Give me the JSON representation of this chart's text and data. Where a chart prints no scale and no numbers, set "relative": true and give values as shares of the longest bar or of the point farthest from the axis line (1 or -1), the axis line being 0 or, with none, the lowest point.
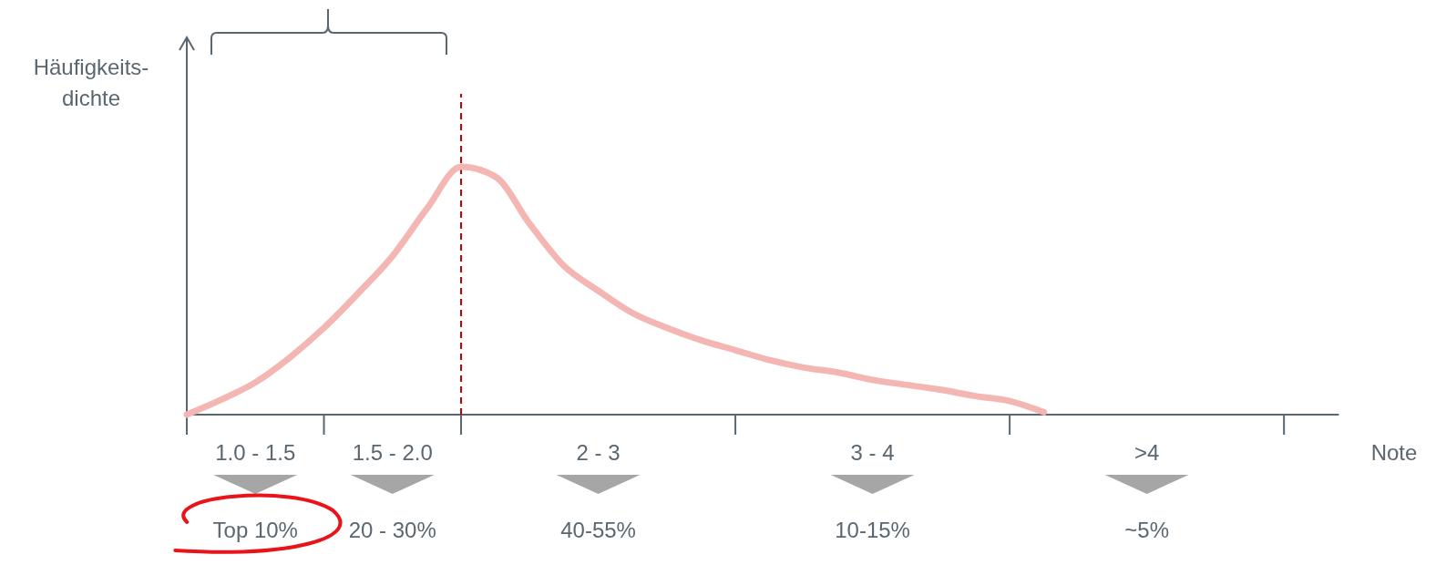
{
  "chart_data": {
    "type": "line",
    "relative": true,
    "xlabel": "Note",
    "ylabel": "Häufigkeits-dichte",
    "categories": [
      null,
      null,
      "1.0 - 1.5",
      null,
      null,
      null,
      "1.5 - 2.0",
      null,
      null,
      null,
      null,
      null,
      "2 - 3",
      null,
      null,
      null,
      null,
      null,
      null,
      null,
      "3 - 4",
      null,
      null,
      null,
      null,
      null,
      null,
      null,
      ">4",
      null,
      null,
      null,
      null
    ],
    "series": [
      {
        "color": "#f4b6b2",
        "values": [
          0,
          0.06,
          0.13,
          0.23,
          0.35,
          0.49,
          0.64,
          0.83,
          1,
          0.96,
          0.77,
          0.6,
          0.5,
          0.41,
          0.35,
          0.3,
          0.26,
          0.22,
          0.19,
          0.17,
          0.14,
          0.12,
          0.1,
          0.075,
          0.055,
          0.01,
          null,
          null,
          null,
          null,
          null,
          null,
          null
        ]
      }
    ],
    "annotations": [
      "Top 10%",
      "20 - 30%",
      "40-55%",
      "10-15%",
      "~5%"
    ]
  }
}
